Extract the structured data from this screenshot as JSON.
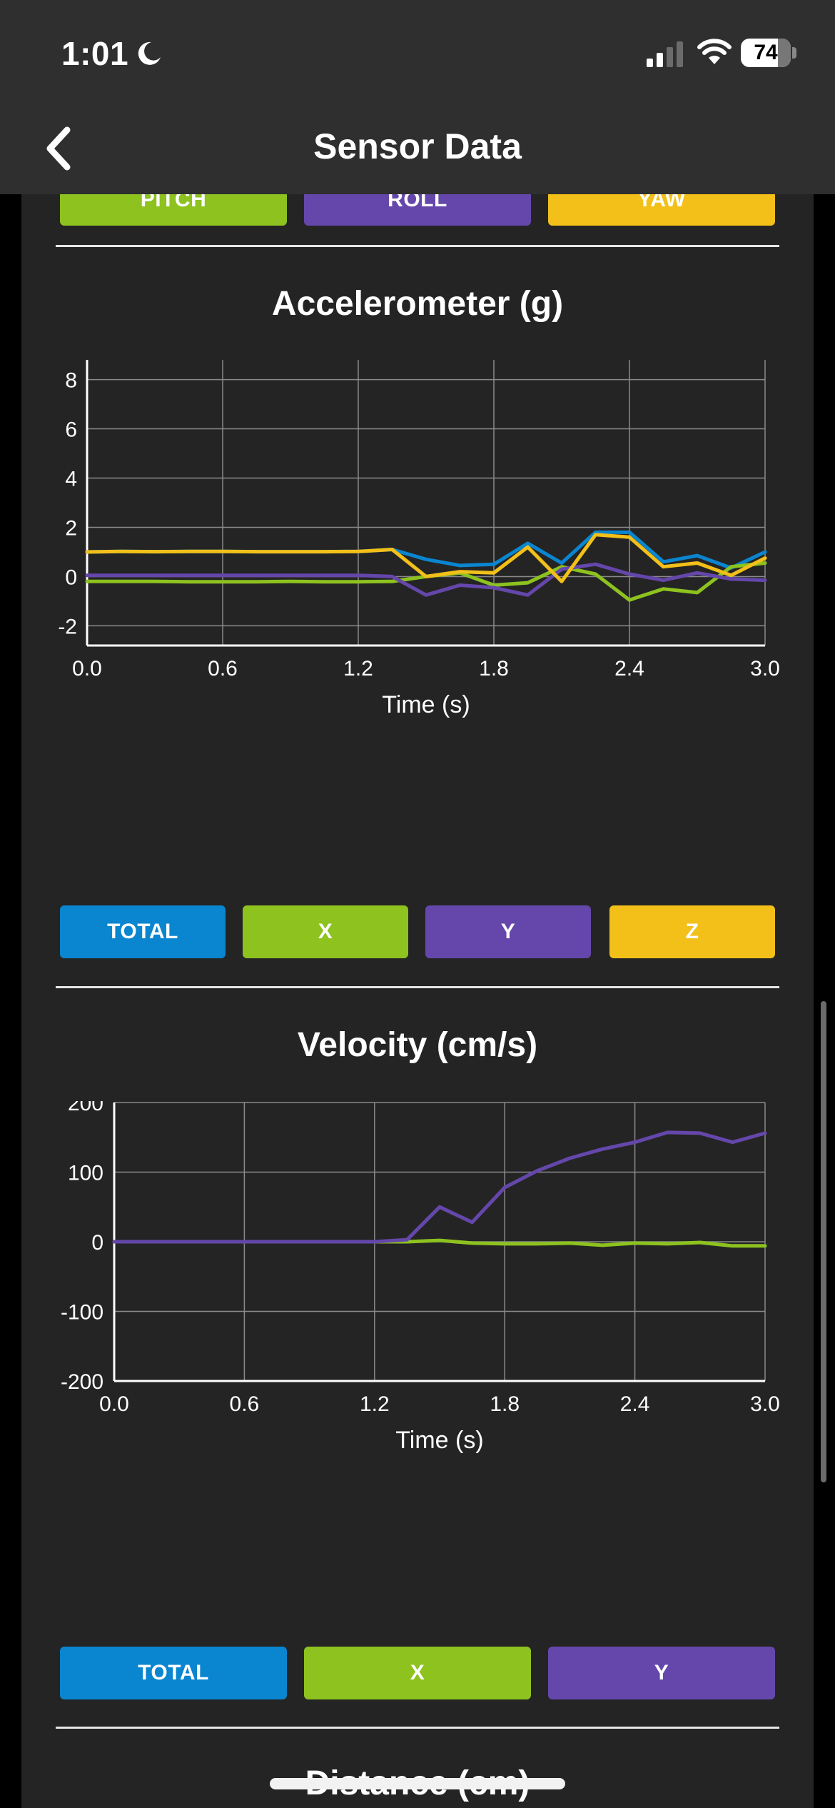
{
  "status": {
    "time": "1:01",
    "battery": "74",
    "battery_level": 0.74
  },
  "nav": {
    "title": "Sensor Data"
  },
  "orientation_buttons": [
    {
      "label": "PITCH",
      "color": "#8dc21f"
    },
    {
      "label": "ROLL",
      "color": "#6547ab"
    },
    {
      "label": "YAW",
      "color": "#f2c019"
    }
  ],
  "sections": {
    "accelerometer": {
      "title": "Accelerometer (g)",
      "buttons": [
        {
          "label": "TOTAL",
          "color": "#0a85cf"
        },
        {
          "label": "X",
          "color": "#8dc21f"
        },
        {
          "label": "Y",
          "color": "#6547ab"
        },
        {
          "label": "Z",
          "color": "#f2c019"
        }
      ]
    },
    "velocity": {
      "title": "Velocity (cm/s)",
      "buttons": [
        {
          "label": "TOTAL",
          "color": "#0a85cf"
        },
        {
          "label": "X",
          "color": "#8dc21f"
        },
        {
          "label": "Y",
          "color": "#6547ab"
        }
      ]
    },
    "distance": {
      "title": "Distance (cm)"
    }
  },
  "chart_data": [
    {
      "type": "line",
      "title": "",
      "xlabel": "Time (s)",
      "ylabel": "",
      "xlim": [
        0,
        3.0
      ],
      "ylim": [
        -2.8,
        8.8
      ],
      "x_ticks": [
        "0.0",
        "0.6",
        "1.2",
        "1.8",
        "2.4",
        "3.0"
      ],
      "y_ticks": [
        "8",
        "6",
        "4",
        "2",
        "0",
        "-2"
      ],
      "grid": true,
      "x": [
        0,
        0.15,
        0.3,
        0.45,
        0.6,
        0.75,
        0.9,
        1.05,
        1.2,
        1.35,
        1.5,
        1.65,
        1.8,
        1.95,
        2.1,
        2.25,
        2.4,
        2.55,
        2.7,
        2.85,
        3.0
      ],
      "series": [
        {
          "name": "TOTAL",
          "color": "#0a85cf",
          "values": [
            1.0,
            1.02,
            1.01,
            1.02,
            1.02,
            1.01,
            1.01,
            1.01,
            1.02,
            1.1,
            0.7,
            0.45,
            0.5,
            1.35,
            0.55,
            1.8,
            1.8,
            0.6,
            0.85,
            0.35,
            1.0
          ]
        },
        {
          "name": "X",
          "color": "#8dc21f",
          "values": [
            -0.2,
            -0.2,
            -0.2,
            -0.21,
            -0.21,
            -0.21,
            -0.2,
            -0.21,
            -0.21,
            -0.2,
            0.0,
            0.15,
            -0.35,
            -0.25,
            0.4,
            0.1,
            -0.95,
            -0.5,
            -0.65,
            0.4,
            0.55
          ]
        },
        {
          "name": "Y",
          "color": "#6547ab",
          "values": [
            0.05,
            0.05,
            0.05,
            0.05,
            0.05,
            0.05,
            0.05,
            0.05,
            0.05,
            0.0,
            -0.75,
            -0.35,
            -0.45,
            -0.75,
            0.3,
            0.5,
            0.1,
            -0.15,
            0.15,
            -0.1,
            -0.15
          ]
        },
        {
          "name": "Z",
          "color": "#f2c019",
          "values": [
            1.0,
            1.02,
            1.01,
            1.02,
            1.02,
            1.01,
            1.01,
            1.01,
            1.02,
            1.1,
            0.0,
            0.2,
            0.15,
            1.2,
            -0.2,
            1.7,
            1.6,
            0.4,
            0.55,
            0.05,
            0.75
          ]
        }
      ]
    },
    {
      "type": "line",
      "title": "",
      "xlabel": "Time (s)",
      "ylabel": "",
      "xlim": [
        0,
        3.0
      ],
      "ylim": [
        -200,
        200
      ],
      "x_ticks": [
        "0.0",
        "0.6",
        "1.2",
        "1.8",
        "2.4",
        "3.0"
      ],
      "y_ticks": [
        "200",
        "100",
        "0",
        "-100",
        "-200"
      ],
      "grid": true,
      "x": [
        0,
        0.15,
        0.3,
        0.45,
        0.6,
        0.75,
        0.9,
        1.05,
        1.2,
        1.35,
        1.5,
        1.65,
        1.8,
        1.95,
        2.1,
        2.25,
        2.4,
        2.55,
        2.7,
        2.85,
        3.0
      ],
      "series": [
        {
          "name": "X",
          "color": "#8dc21f",
          "values": [
            0,
            0,
            0,
            0,
            0,
            0,
            0,
            0,
            0,
            0,
            2,
            -2,
            -3,
            -3,
            -2,
            -5,
            -2,
            -3,
            -1,
            -6,
            -6
          ]
        },
        {
          "name": "Y",
          "color": "#6547ab",
          "values": [
            0,
            0,
            0,
            0,
            0,
            0,
            0,
            0,
            0,
            3,
            50,
            28,
            78,
            102,
            120,
            133,
            143,
            157,
            156,
            143,
            156
          ]
        }
      ]
    }
  ]
}
